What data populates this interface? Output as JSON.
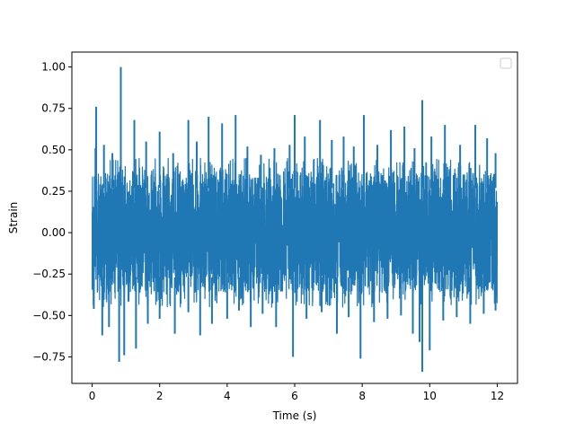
{
  "chart_data": {
    "type": "line",
    "title": "",
    "xlabel": "Time (s)",
    "ylabel": "Strain",
    "xlim": [
      -0.6,
      12.6
    ],
    "ylim": [
      -0.91,
      1.09
    ],
    "x_ticks": [
      0,
      2,
      4,
      6,
      8,
      10,
      12
    ],
    "x_tick_labels": [
      "0",
      "2",
      "4",
      "6",
      "8",
      "10",
      "12"
    ],
    "y_ticks": [
      -0.75,
      -0.5,
      -0.25,
      0.0,
      0.25,
      0.5,
      0.75,
      1.0
    ],
    "y_tick_labels": [
      "−0.75",
      "−0.50",
      "−0.25",
      "0.00",
      "0.25",
      "0.50",
      "0.75",
      "1.00"
    ],
    "legend": {
      "placement": "top-right",
      "entries": []
    },
    "grid": false,
    "series": [
      {
        "color": "#1f77b4",
        "x_range": [
          0,
          12
        ],
        "typical_range": [
          -0.45,
          0.45
        ],
        "upper_peaks": [
          {
            "x": 0.1,
            "y": 0.51
          },
          {
            "x": 0.12,
            "y": 0.76
          },
          {
            "x": 0.35,
            "y": 0.53
          },
          {
            "x": 0.6,
            "y": 0.48
          },
          {
            "x": 0.85,
            "y": 1.0
          },
          {
            "x": 1.25,
            "y": 0.68
          },
          {
            "x": 1.6,
            "y": 0.55
          },
          {
            "x": 2.0,
            "y": 0.61
          },
          {
            "x": 2.4,
            "y": 0.48
          },
          {
            "x": 2.85,
            "y": 0.68
          },
          {
            "x": 3.1,
            "y": 0.55
          },
          {
            "x": 3.45,
            "y": 0.7
          },
          {
            "x": 3.85,
            "y": 0.66
          },
          {
            "x": 4.25,
            "y": 0.71
          },
          {
            "x": 4.6,
            "y": 0.52
          },
          {
            "x": 5.0,
            "y": 0.47
          },
          {
            "x": 5.4,
            "y": 0.51
          },
          {
            "x": 5.85,
            "y": 0.53
          },
          {
            "x": 6.0,
            "y": 0.71
          },
          {
            "x": 6.3,
            "y": 0.58
          },
          {
            "x": 6.75,
            "y": 0.68
          },
          {
            "x": 7.1,
            "y": 0.56
          },
          {
            "x": 7.45,
            "y": 0.58
          },
          {
            "x": 7.75,
            "y": 0.52
          },
          {
            "x": 8.05,
            "y": 0.71
          },
          {
            "x": 8.45,
            "y": 0.53
          },
          {
            "x": 8.85,
            "y": 0.62
          },
          {
            "x": 9.25,
            "y": 0.64
          },
          {
            "x": 9.55,
            "y": 0.51
          },
          {
            "x": 9.78,
            "y": 0.8
          },
          {
            "x": 10.05,
            "y": 0.58
          },
          {
            "x": 10.45,
            "y": 0.65
          },
          {
            "x": 10.9,
            "y": 0.53
          },
          {
            "x": 11.35,
            "y": 0.65
          },
          {
            "x": 11.7,
            "y": 0.57
          },
          {
            "x": 11.95,
            "y": 0.48
          }
        ],
        "lower_peaks": [
          {
            "x": 0.05,
            "y": -0.46
          },
          {
            "x": 0.3,
            "y": -0.62
          },
          {
            "x": 0.5,
            "y": -0.57
          },
          {
            "x": 0.8,
            "y": -0.78
          },
          {
            "x": 0.95,
            "y": -0.74
          },
          {
            "x": 1.3,
            "y": -0.7
          },
          {
            "x": 1.65,
            "y": -0.55
          },
          {
            "x": 2.0,
            "y": -0.52
          },
          {
            "x": 2.45,
            "y": -0.61
          },
          {
            "x": 2.85,
            "y": -0.48
          },
          {
            "x": 3.2,
            "y": -0.62
          },
          {
            "x": 3.55,
            "y": -0.55
          },
          {
            "x": 4.0,
            "y": -0.52
          },
          {
            "x": 4.35,
            "y": -0.47
          },
          {
            "x": 4.7,
            "y": -0.57
          },
          {
            "x": 5.05,
            "y": -0.49
          },
          {
            "x": 5.45,
            "y": -0.57
          },
          {
            "x": 5.95,
            "y": -0.75
          },
          {
            "x": 6.35,
            "y": -0.52
          },
          {
            "x": 6.8,
            "y": -0.48
          },
          {
            "x": 7.25,
            "y": -0.61
          },
          {
            "x": 7.6,
            "y": -0.51
          },
          {
            "x": 7.95,
            "y": -0.76
          },
          {
            "x": 8.35,
            "y": -0.54
          },
          {
            "x": 8.75,
            "y": -0.52
          },
          {
            "x": 9.15,
            "y": -0.5
          },
          {
            "x": 9.5,
            "y": -0.61
          },
          {
            "x": 9.7,
            "y": -0.66
          },
          {
            "x": 9.78,
            "y": -0.84
          },
          {
            "x": 10.0,
            "y": -0.71
          },
          {
            "x": 10.4,
            "y": -0.53
          },
          {
            "x": 10.8,
            "y": -0.51
          },
          {
            "x": 11.2,
            "y": -0.55
          },
          {
            "x": 11.6,
            "y": -0.49
          },
          {
            "x": 11.95,
            "y": -0.47
          }
        ]
      }
    ]
  }
}
